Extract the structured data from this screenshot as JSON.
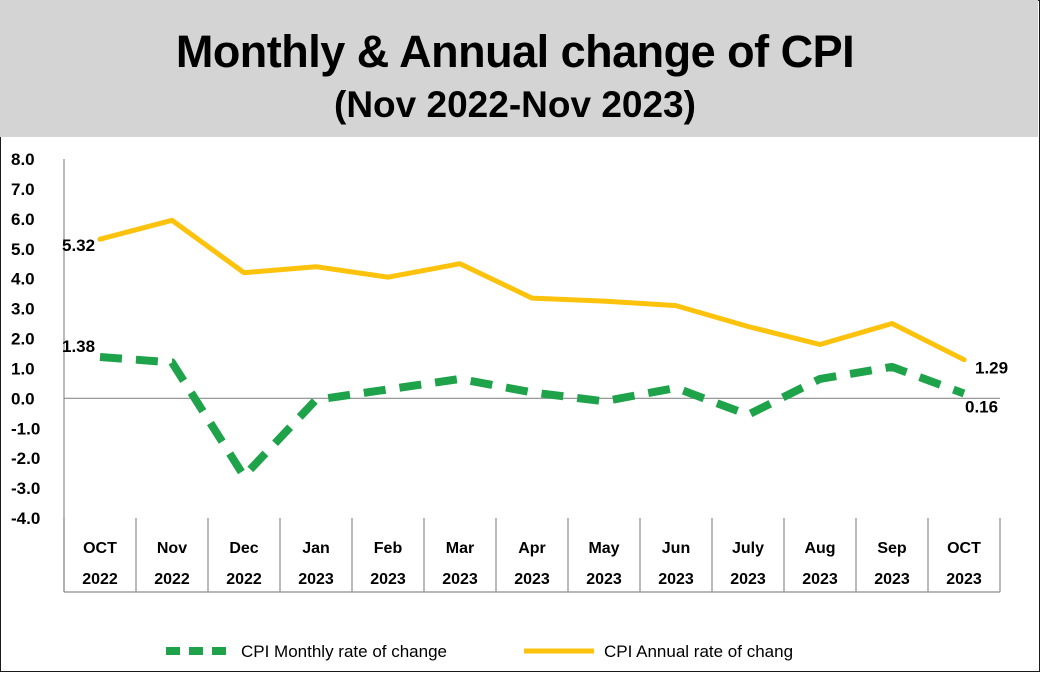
{
  "chart_data": {
    "type": "line",
    "title": "Monthly & Annual change of CPI",
    "subtitle": "(Nov 2022-Nov 2023)",
    "xlabel": "",
    "ylabel": "",
    "ylim": [
      -4.0,
      8.0
    ],
    "yticks": [
      "8.0",
      "7.0",
      "6.0",
      "5.0",
      "4.0",
      "3.0",
      "2.0",
      "1.0",
      "0.0",
      "-1.0",
      "-2.0",
      "-3.0",
      "-4.0"
    ],
    "categories": [
      {
        "month": "OCT",
        "year": "2022"
      },
      {
        "month": "Nov",
        "year": "2022"
      },
      {
        "month": "Dec",
        "year": "2022"
      },
      {
        "month": "Jan",
        "year": "2023"
      },
      {
        "month": "Feb",
        "year": "2023"
      },
      {
        "month": "Mar",
        "year": "2023"
      },
      {
        "month": "Apr",
        "year": "2023"
      },
      {
        "month": "May",
        "year": "2023"
      },
      {
        "month": "Jun",
        "year": "2023"
      },
      {
        "month": "July",
        "year": "2023"
      },
      {
        "month": "Aug",
        "year": "2023"
      },
      {
        "month": "Sep",
        "year": "2023"
      },
      {
        "month": "OCT",
        "year": "2023"
      }
    ],
    "series": [
      {
        "name": "CPI Monthly rate of change",
        "color": "#1fa34a",
        "style": "dashed",
        "values": [
          1.38,
          1.2,
          -2.6,
          -0.05,
          0.3,
          0.65,
          0.2,
          -0.1,
          0.35,
          -0.55,
          0.65,
          1.05,
          0.16
        ]
      },
      {
        "name": "CPI Annual rate of chang",
        "color": "#fdc20c",
        "style": "solid",
        "values": [
          5.32,
          5.95,
          4.2,
          4.4,
          4.05,
          4.5,
          3.35,
          3.25,
          3.1,
          2.4,
          1.8,
          2.5,
          1.29
        ]
      }
    ],
    "data_labels": [
      {
        "series": 0,
        "index": 0,
        "text": "1.38"
      },
      {
        "series": 0,
        "index": 12,
        "text": "0.16"
      },
      {
        "series": 1,
        "index": 0,
        "text": "5.32"
      },
      {
        "series": 1,
        "index": 12,
        "text": "1.29"
      }
    ],
    "legend_position": "bottom"
  }
}
